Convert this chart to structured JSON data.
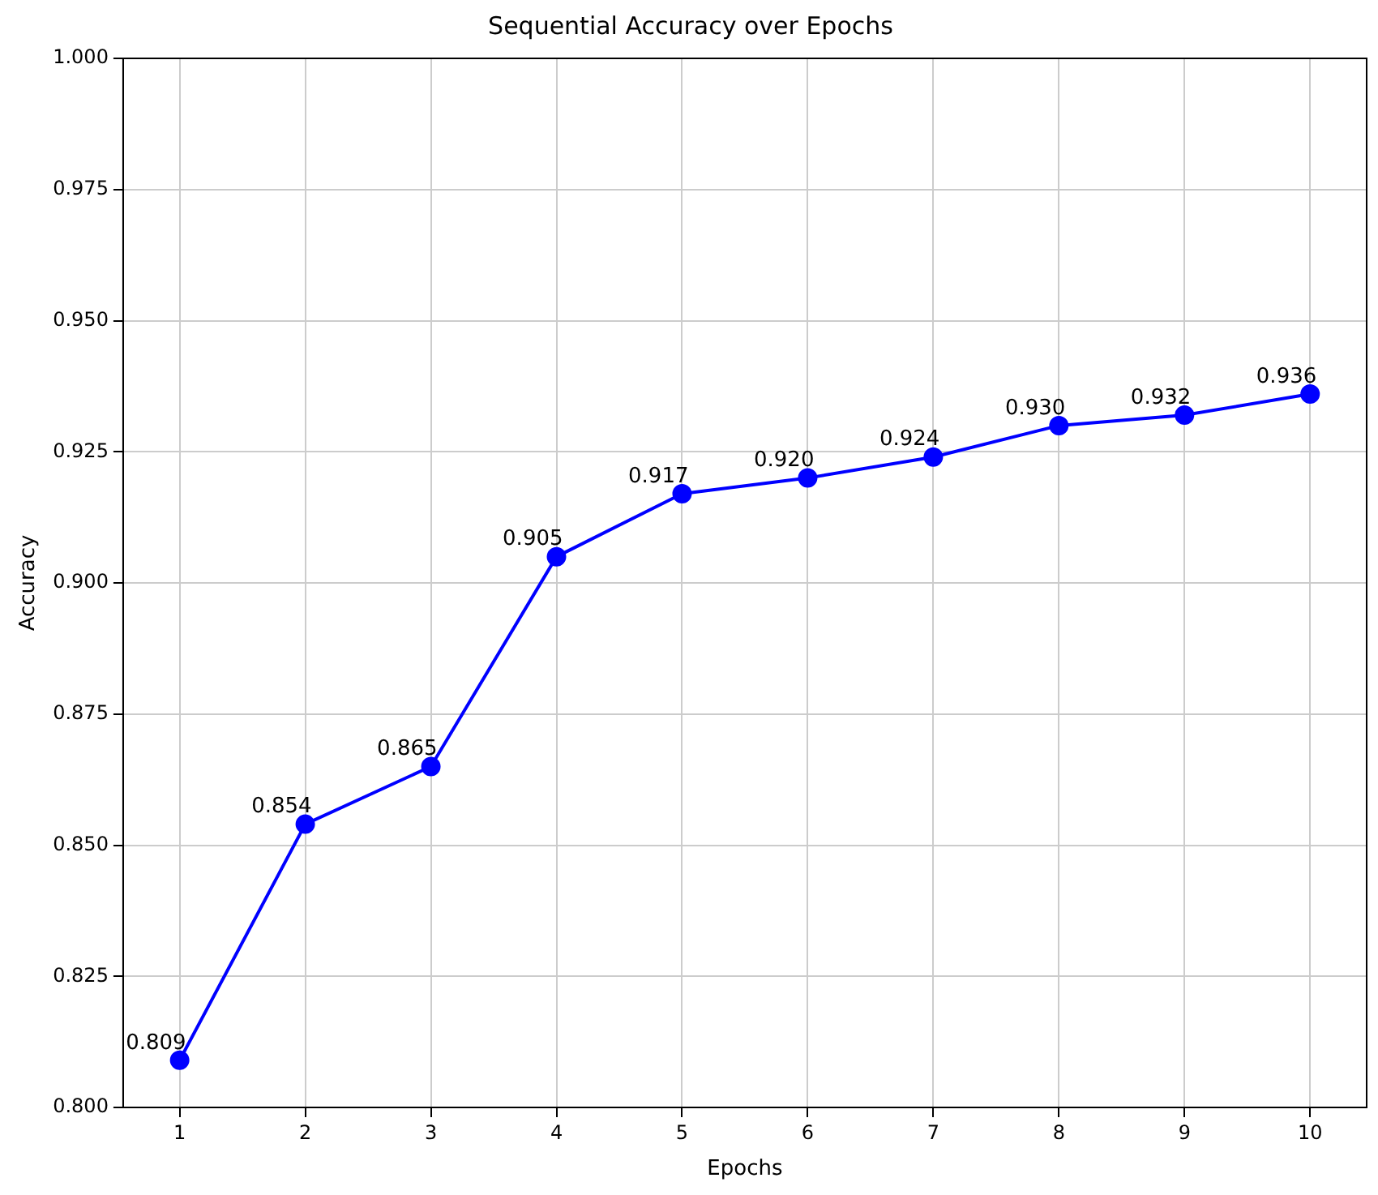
{
  "chart_data": {
    "type": "line",
    "title": "Sequential Accuracy over Epochs",
    "xlabel": "Epochs",
    "ylabel": "Accuracy",
    "x": [
      1,
      2,
      3,
      4,
      5,
      6,
      7,
      8,
      9,
      10
    ],
    "series": [
      {
        "color": "#0000ff",
        "values": [
          0.809,
          0.854,
          0.865,
          0.905,
          0.917,
          0.92,
          0.924,
          0.93,
          0.932,
          0.936
        ],
        "value_labels": [
          "0.809",
          "0.854",
          "0.865",
          "0.905",
          "0.917",
          "0.920",
          "0.924",
          "0.930",
          "0.932",
          "0.936"
        ]
      }
    ],
    "xlim": [
      0.55,
      10.45
    ],
    "xticks": [
      1,
      2,
      3,
      4,
      5,
      6,
      7,
      8,
      9,
      10
    ],
    "ylim": [
      0.8,
      1.0
    ],
    "yticks": [
      {
        "value": 0.8,
        "label": "0.800"
      },
      {
        "value": 0.825,
        "label": "0.825"
      },
      {
        "value": 0.85,
        "label": "0.850"
      },
      {
        "value": 0.875,
        "label": "0.875"
      },
      {
        "value": 0.9,
        "label": "0.900"
      },
      {
        "value": 0.925,
        "label": "0.925"
      },
      {
        "value": 0.95,
        "label": "0.950"
      },
      {
        "value": 0.975,
        "label": "0.975"
      },
      {
        "value": 1.0,
        "label": "1.000"
      }
    ],
    "grid": true,
    "marker": "circle",
    "line_style": "solid",
    "legend": false
  }
}
